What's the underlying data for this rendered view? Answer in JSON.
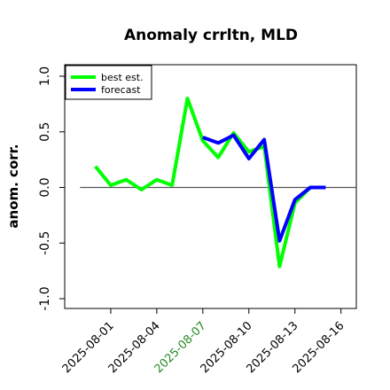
{
  "chart_data": {
    "type": "line",
    "title": "Anomaly crrltn, MLD",
    "ylabel": "anom. corr.",
    "xlabel": "",
    "ylim": [
      -1.0,
      1.0
    ],
    "yticks": [
      "-1.0",
      "-0.5",
      "0.0",
      "0.5",
      "1.0"
    ],
    "ytick_values": [
      -1.0,
      -0.5,
      0.0,
      0.5,
      1.0
    ],
    "xlim": [
      "2025-07-29",
      "2025-08-17"
    ],
    "xticks": [
      {
        "label": "2025-08-01",
        "date": "2025-08-01",
        "color": "#000000"
      },
      {
        "label": "2025-08-04",
        "date": "2025-08-04",
        "color": "#000000"
      },
      {
        "label": "2025-08-07",
        "date": "2025-08-07",
        "color": "#228B22"
      },
      {
        "label": "2025-08-10",
        "date": "2025-08-10",
        "color": "#000000"
      },
      {
        "label": "2025-08-13",
        "date": "2025-08-13",
        "color": "#000000"
      },
      {
        "label": "2025-08-16",
        "date": "2025-08-16",
        "color": "#000000"
      }
    ],
    "reference_line": 0.0,
    "legend_position": "top-left",
    "grid": false,
    "series": [
      {
        "name": "best est.",
        "color": "#00ff00",
        "x": [
          "2025-07-31",
          "2025-08-01",
          "2025-08-02",
          "2025-08-03",
          "2025-08-04",
          "2025-08-05",
          "2025-08-06",
          "2025-08-07",
          "2025-08-08",
          "2025-08-09",
          "2025-08-10",
          "2025-08-11",
          "2025-08-12",
          "2025-08-13",
          "2025-08-14",
          "2025-08-15"
        ],
        "values": [
          0.19,
          0.02,
          0.07,
          -0.02,
          0.07,
          0.02,
          0.8,
          0.42,
          0.27,
          0.49,
          0.32,
          0.37,
          -0.71,
          -0.14,
          0.0,
          0.0
        ]
      },
      {
        "name": "forecast",
        "color": "#0000ff",
        "x": [
          "2025-08-07",
          "2025-08-08",
          "2025-08-09",
          "2025-08-10",
          "2025-08-11",
          "2025-08-12",
          "2025-08-13",
          "2025-08-14",
          "2025-08-15"
        ],
        "values": [
          0.45,
          0.4,
          0.47,
          0.26,
          0.43,
          -0.48,
          -0.11,
          0.0,
          0.0
        ]
      }
    ]
  }
}
